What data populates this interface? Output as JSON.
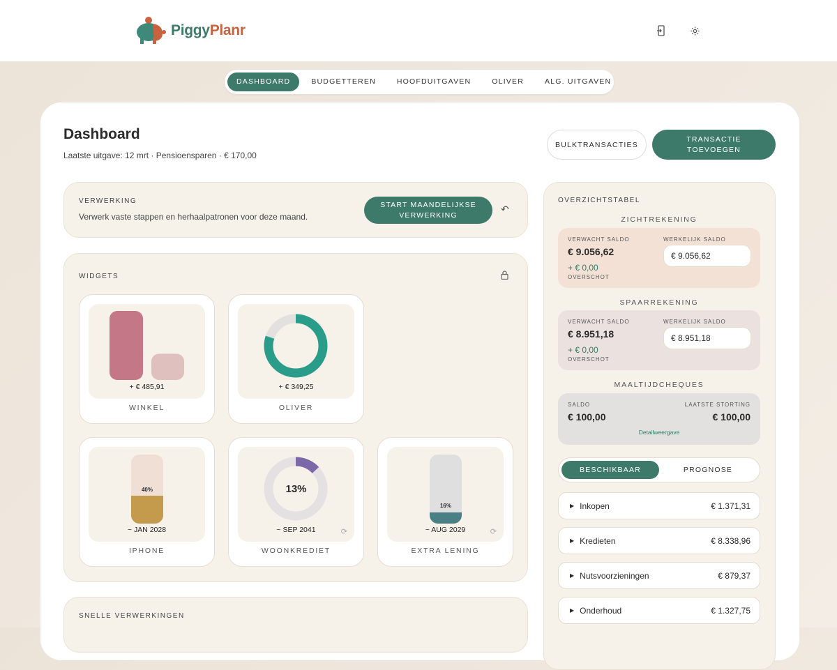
{
  "app": {
    "name_part1": "Piggy",
    "name_part2": "Planr",
    "colors": {
      "brand": "#3e7a6a",
      "logo_accent": "#c8623f"
    }
  },
  "header": {
    "icons": [
      "logout-icon",
      "gear-icon"
    ]
  },
  "nav": {
    "items": [
      "DASHBOARD",
      "BUDGETTEREN",
      "HOOFDUITGAVEN",
      "OLIVER",
      "ALG. UITGAVEN"
    ],
    "active": "DASHBOARD"
  },
  "page": {
    "title": "Dashboard",
    "subtitle": "Laatste uitgave: 12 mrt · Pensioensparen · € 170,00",
    "bulk_label": "BULKTRANSACTIES",
    "add_label_1": "TRANSACTIE",
    "add_label_2": "TOEVOEGEN"
  },
  "verwerking": {
    "title": "VERWERKING",
    "description": "Verwerk vaste stappen en herhaalpatronen voor deze maand.",
    "button_1": "START MAANDELIJKSE",
    "button_2": "VERWERKING"
  },
  "widgets": {
    "title": "WIDGETS",
    "items": [
      {
        "label": "WINKEL",
        "value": "+ € 485,91",
        "type": "bars",
        "bars": [
          1.0,
          0.38
        ],
        "colors": [
          "#c47787",
          "#e0c0bf"
        ]
      },
      {
        "label": "OLIVER",
        "value": "+ € 349,25",
        "type": "donut",
        "fraction": 0.8,
        "color": "#2a9d8a"
      },
      {
        "label": "IPHONE",
        "value": "~ JAN 2028",
        "type": "pill",
        "percent": "40%",
        "fraction": 0.4,
        "color": "#c49a4c"
      },
      {
        "label": "WOONKREDIET",
        "value": "~ SEP 2041",
        "type": "donut",
        "percent": "13%",
        "fraction": 0.13,
        "color": "#7c68a8"
      },
      {
        "label": "EXTRA LENING",
        "value": "~ AUG 2029",
        "type": "pill",
        "percent": "16%",
        "fraction": 0.16,
        "color": "#4a7f85"
      }
    ]
  },
  "snelle": {
    "title": "SNELLE VERWERKINGEN"
  },
  "overzicht": {
    "title": "OVERZICHTSTABEL",
    "zicht": {
      "title": "ZICHTREKENING",
      "expected_label": "VERWACHT SALDO",
      "expected": "€ 9.056,62",
      "actual_label": "WERKELIJK SALDO",
      "actual": "€ 9.056,62",
      "surplus": "+ € 0,00",
      "surplus_label": "OVERSCHOT"
    },
    "spaar": {
      "title": "SPAARREKENING",
      "expected_label": "VERWACHT SALDO",
      "expected": "€ 8.951,18",
      "actual_label": "WERKELIJK SALDO",
      "actual": "€ 8.951,18",
      "surplus": "+ € 0,00",
      "surplus_label": "OVERSCHOT"
    },
    "maaltijd": {
      "title": "MAALTIJDCHEQUES",
      "saldo_label": "SALDO",
      "saldo": "€ 100,00",
      "last_label": "LAATSTE STORTING",
      "last": "€ 100,00",
      "detail": "Detailweergave"
    },
    "toggle": {
      "options": [
        "BESCHIKBAAR",
        "PROGNOSE"
      ],
      "active": "BESCHIKBAAR"
    },
    "rows": [
      {
        "name": "Inkopen",
        "amount": "€ 1.371,31"
      },
      {
        "name": "Kredieten",
        "amount": "€ 8.338,96"
      },
      {
        "name": "Nutsvoorzieningen",
        "amount": "€ 879,37"
      },
      {
        "name": "Onderhoud",
        "amount": "€ 1.327,75"
      }
    ]
  }
}
